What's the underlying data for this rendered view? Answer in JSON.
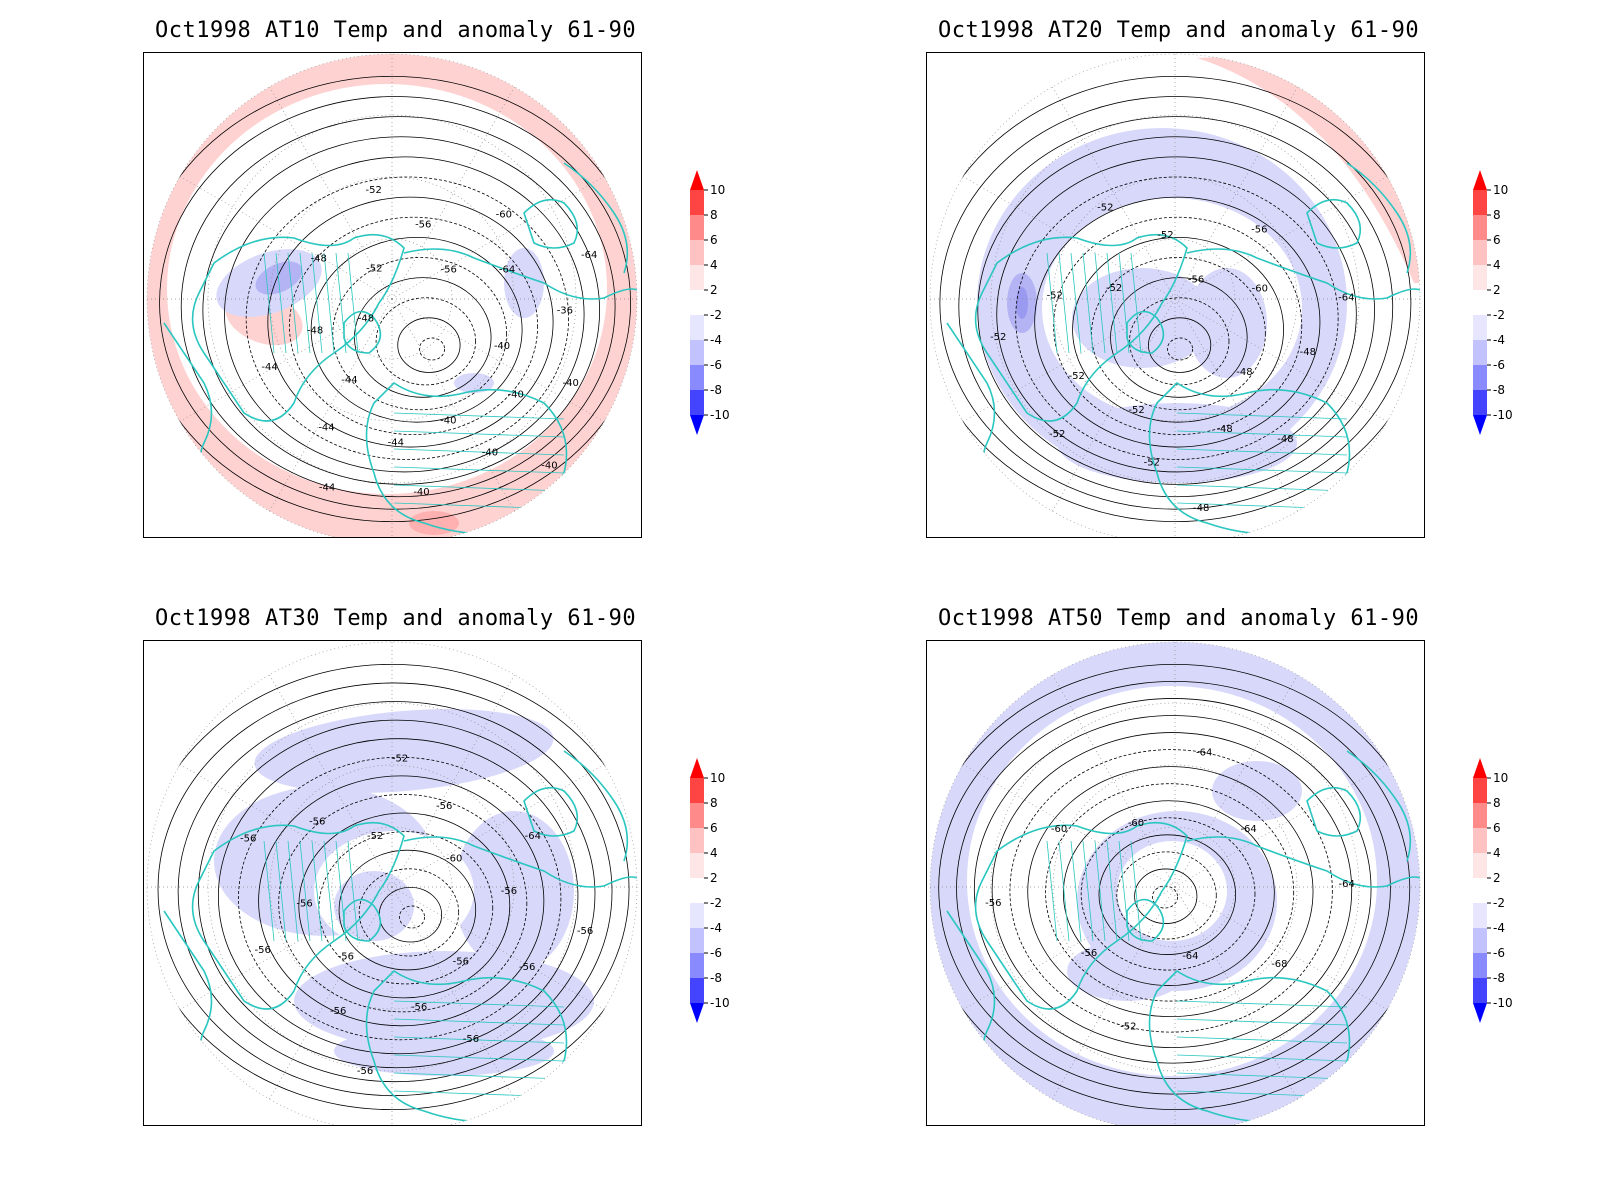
{
  "panels": [
    {
      "title": "Oct1998 AT10 Temp and anomaly 61-90",
      "contour_labels": [
        "-40",
        "-40",
        "-40",
        "-40",
        "-40",
        "-40",
        "-40",
        "-44",
        "-44",
        "-44",
        "-44",
        "-44",
        "-48",
        "-48",
        "-48",
        "-52",
        "-52",
        "-56",
        "-56",
        "-60",
        "-64",
        "-64",
        "-36"
      ],
      "anomaly_pattern": "warm-ring"
    },
    {
      "title": "Oct1998 AT20 Temp and anomaly 61-90",
      "contour_labels": [
        "-48",
        "-48",
        "-48",
        "-48",
        "-52",
        "-52",
        "-52",
        "-52",
        "-52",
        "-52",
        "-52",
        "-52",
        "-52",
        "-56",
        "-56",
        "-60",
        "-64",
        "-48"
      ],
      "anomaly_pattern": "cool-ring"
    },
    {
      "title": "Oct1998 AT30 Temp and anomaly 61-90",
      "contour_labels": [
        "-56",
        "-56",
        "-56",
        "-56",
        "-56",
        "-56",
        "-56",
        "-56",
        "-56",
        "-56",
        "-52",
        "-52",
        "-56",
        "-60",
        "-64",
        "-56",
        "-56",
        "-56"
      ],
      "anomaly_pattern": "cool-band"
    },
    {
      "title": "Oct1998 AT50 Temp and anomaly 61-90",
      "contour_labels": [
        "-64",
        "-52",
        "-56",
        "-56",
        "-60",
        "-60",
        "-64",
        "-64",
        "-64",
        "-68"
      ],
      "anomaly_pattern": "cool-outer"
    }
  ],
  "colorbar": {
    "labels": [
      "10",
      "8",
      "6",
      "4",
      "2",
      "-2",
      "-4",
      "-6",
      "-8",
      "-10"
    ],
    "colors": [
      "#ff0000",
      "#ff4444",
      "#ff8a8a",
      "#ffc2c2",
      "#ffe6e6",
      "#ffffff",
      "#e6e6ff",
      "#c2c2ff",
      "#8a8aff",
      "#4444ff",
      "#0000ff"
    ]
  }
}
